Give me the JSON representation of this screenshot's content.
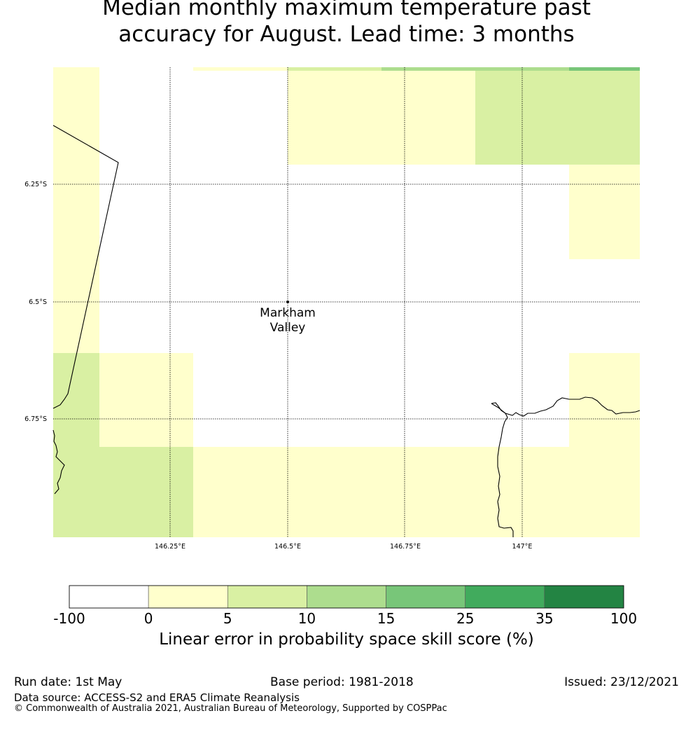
{
  "title": {
    "line1": "Median monthly maximum temperature past",
    "line2": "accuracy for August. Lead time: 3 months"
  },
  "map": {
    "lon_ticks": [
      "146.25°E",
      "146.5°E",
      "146.75°E",
      "147°E"
    ],
    "lat_ticks": [
      "6.25°S",
      "6.5°S",
      "6.75°S"
    ],
    "location": {
      "name_line1": "Markham",
      "name_line2": "Valley",
      "lon": 146.5,
      "lat": -6.5
    }
  },
  "colorbar": {
    "label": "Linear error in probability space skill score (%)",
    "ticks": [
      "-100",
      "0",
      "5",
      "10",
      "15",
      "25",
      "35",
      "100"
    ],
    "colors": [
      "#ffffff",
      "#ffffcc",
      "#d9f0a3",
      "#addd8e",
      "#78c679",
      "#41ab5d",
      "#238443"
    ]
  },
  "footer": {
    "run_date": "Run date: 1st May",
    "base_period": "Base period: 1981-2018",
    "issued": "Issued: 23/12/2021",
    "data_source": "Data source: ACCESS-S2 and ERA5 Climate Reanalysis",
    "copyright": "© Commonwealth of Australia 2021, Australian Bureau of Meteorology, Supported by COSPPac"
  }
}
